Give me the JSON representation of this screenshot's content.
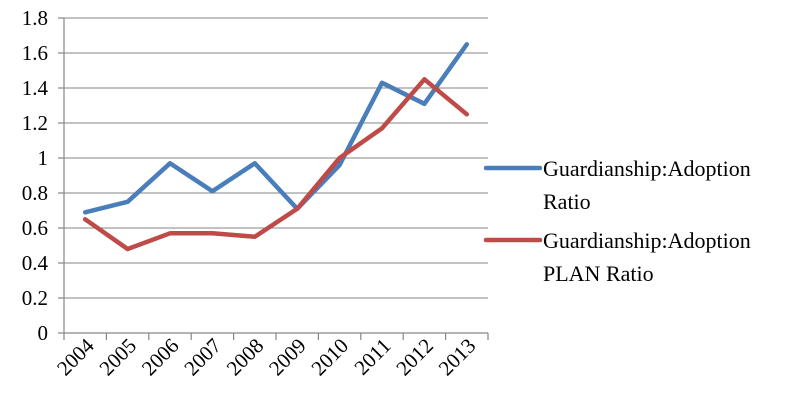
{
  "chart_data": {
    "type": "line",
    "title": "",
    "xlabel": "",
    "ylabel": "",
    "categories": [
      "2004",
      "2005",
      "2006",
      "2007",
      "2008",
      "2009",
      "2010",
      "2011",
      "2012",
      "2013"
    ],
    "ylim": [
      0,
      1.8
    ],
    "yticks": [
      "0",
      "0.2",
      "0.4",
      "0.6",
      "0.8",
      "1",
      "1.2",
      "1.4",
      "1.6",
      "1.8"
    ],
    "grid": "horizontal",
    "legend_position": "right",
    "series": [
      {
        "name": "Guardianship:Adoption Ratio",
        "name_lines": [
          "Guardianship:Adoption",
          "Ratio"
        ],
        "color": "#4a7ebb",
        "values": [
          0.69,
          0.75,
          0.97,
          0.81,
          0.97,
          0.71,
          0.96,
          1.43,
          1.31,
          1.65
        ]
      },
      {
        "name": "Guardianship:Adoption PLAN Ratio",
        "name_lines": [
          "Guardianship:Adoption",
          "PLAN Ratio"
        ],
        "color": "#be4b48",
        "values": [
          0.65,
          0.48,
          0.57,
          0.57,
          0.55,
          0.71,
          1.0,
          1.17,
          1.45,
          1.25
        ]
      }
    ]
  }
}
